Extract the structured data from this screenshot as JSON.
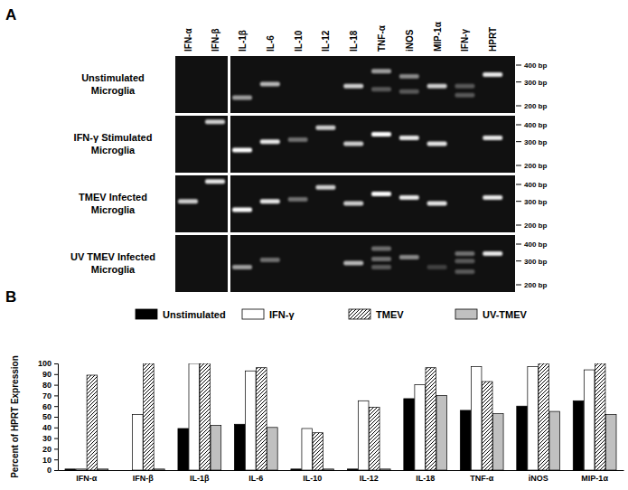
{
  "panel_labels": [
    "A",
    "B"
  ],
  "gel": {
    "lanes": [
      "IFN-α",
      "IFN-β",
      "IL-1β",
      "IL-6",
      "IL-10",
      "IL-12",
      "IL-18",
      "TNF-α",
      "iNOS",
      "MIP-1α",
      "IFN-γ",
      "HPRT"
    ],
    "markers": [
      {
        "value": 400,
        "label": "400 bp"
      },
      {
        "value": 300,
        "label": "300 bp"
      },
      {
        "value": 200,
        "label": "200 bp"
      }
    ],
    "rows": [
      {
        "label": [
          "Unstimulated",
          "Microglia"
        ],
        "bands": [
          {
            "lane": 2,
            "bp": 230,
            "intensity": 0.6
          },
          {
            "lane": 3,
            "bp": 290,
            "intensity": 0.7
          },
          {
            "lane": 6,
            "bp": 280,
            "intensity": 0.8
          },
          {
            "lane": 7,
            "bp": 360,
            "intensity": 0.6
          },
          {
            "lane": 7,
            "bp": 265,
            "intensity": 0.3
          },
          {
            "lane": 8,
            "bp": 330,
            "intensity": 0.5
          },
          {
            "lane": 8,
            "bp": 255,
            "intensity": 0.3
          },
          {
            "lane": 9,
            "bp": 280,
            "intensity": 0.8
          },
          {
            "lane": 10,
            "bp": 280,
            "intensity": 0.3
          },
          {
            "lane": 10,
            "bp": 240,
            "intensity": 0.3
          },
          {
            "lane": 11,
            "bp": 340,
            "intensity": 0.9
          }
        ]
      },
      {
        "label": [
          "IFN-γ Stimulated",
          "Microglia"
        ],
        "bands": [
          {
            "lane": 1,
            "bp": 420,
            "intensity": 0.8
          },
          {
            "lane": 2,
            "bp": 260,
            "intensity": 1
          },
          {
            "lane": 3,
            "bp": 300,
            "intensity": 0.9
          },
          {
            "lane": 4,
            "bp": 310,
            "intensity": 0.4
          },
          {
            "lane": 5,
            "bp": 380,
            "intensity": 0.8
          },
          {
            "lane": 6,
            "bp": 290,
            "intensity": 0.8
          },
          {
            "lane": 7,
            "bp": 340,
            "intensity": 1
          },
          {
            "lane": 8,
            "bp": 320,
            "intensity": 0.9
          },
          {
            "lane": 9,
            "bp": 290,
            "intensity": 0.9
          },
          {
            "lane": 11,
            "bp": 320,
            "intensity": 0.9
          }
        ]
      },
      {
        "label": [
          "TMEV Infected",
          "Microglia"
        ],
        "bands": [
          {
            "lane": 0,
            "bp": 300,
            "intensity": 0.8
          },
          {
            "lane": 1,
            "bp": 420,
            "intensity": 0.9
          },
          {
            "lane": 2,
            "bp": 260,
            "intensity": 1
          },
          {
            "lane": 3,
            "bp": 300,
            "intensity": 0.9
          },
          {
            "lane": 4,
            "bp": 310,
            "intensity": 0.4
          },
          {
            "lane": 5,
            "bp": 380,
            "intensity": 0.8
          },
          {
            "lane": 6,
            "bp": 290,
            "intensity": 0.8
          },
          {
            "lane": 7,
            "bp": 340,
            "intensity": 1
          },
          {
            "lane": 8,
            "bp": 320,
            "intensity": 0.9
          },
          {
            "lane": 9,
            "bp": 290,
            "intensity": 0.9
          },
          {
            "lane": 11,
            "bp": 320,
            "intensity": 0.9
          }
        ]
      },
      {
        "label": [
          "UV TMEV Infected",
          "Microglia"
        ],
        "bands": [
          {
            "lane": 2,
            "bp": 270,
            "intensity": 0.6
          },
          {
            "lane": 3,
            "bp": 305,
            "intensity": 0.4
          },
          {
            "lane": 6,
            "bp": 290,
            "intensity": 0.7
          },
          {
            "lane": 7,
            "bp": 370,
            "intensity": 0.4
          },
          {
            "lane": 7,
            "bp": 310,
            "intensity": 0.4
          },
          {
            "lane": 7,
            "bp": 270,
            "intensity": 0.3
          },
          {
            "lane": 8,
            "bp": 320,
            "intensity": 0.5
          },
          {
            "lane": 9,
            "bp": 270,
            "intensity": 0.2
          },
          {
            "lane": 10,
            "bp": 340,
            "intensity": 0.4
          },
          {
            "lane": 10,
            "bp": 300,
            "intensity": 0.3
          },
          {
            "lane": 10,
            "bp": 250,
            "intensity": 0.3
          },
          {
            "lane": 11,
            "bp": 340,
            "intensity": 0.9
          }
        ]
      }
    ]
  },
  "chart_data": {
    "type": "bar",
    "categories": [
      "IFN-α",
      "IFN-β",
      "IL-1β",
      "IL-6",
      "IL-10",
      "IL-12",
      "IL-18",
      "TNF-α",
      "iNOS",
      "MIP-1α"
    ],
    "series": [
      {
        "name": "Unstimulated",
        "color": "#000000",
        "marker": "solid",
        "values": [
          1,
          0,
          39,
          43,
          1,
          1,
          67,
          56,
          60,
          65
        ]
      },
      {
        "name": "IFN-γ",
        "color": "#ffffff",
        "marker": "solid",
        "values": [
          1,
          52,
          100,
          93,
          39,
          65,
          80,
          97,
          97,
          94
        ]
      },
      {
        "name": "TMEV",
        "color": "#ffffff",
        "marker": "hatch",
        "values": [
          89,
          100,
          100,
          96,
          35,
          59,
          96,
          83,
          100,
          100
        ]
      },
      {
        "name": "UV-TMEV",
        "color": "#c0c0c0",
        "marker": "solid",
        "values": [
          1,
          1,
          42,
          40,
          1,
          1,
          70,
          53,
          55,
          52
        ]
      }
    ],
    "ylabel": "Percent of HPRT Expression",
    "ylim": [
      0,
      100
    ],
    "yticks": [
      0,
      10,
      20,
      30,
      40,
      50,
      60,
      70,
      80,
      90,
      100
    ],
    "legend": "top"
  }
}
